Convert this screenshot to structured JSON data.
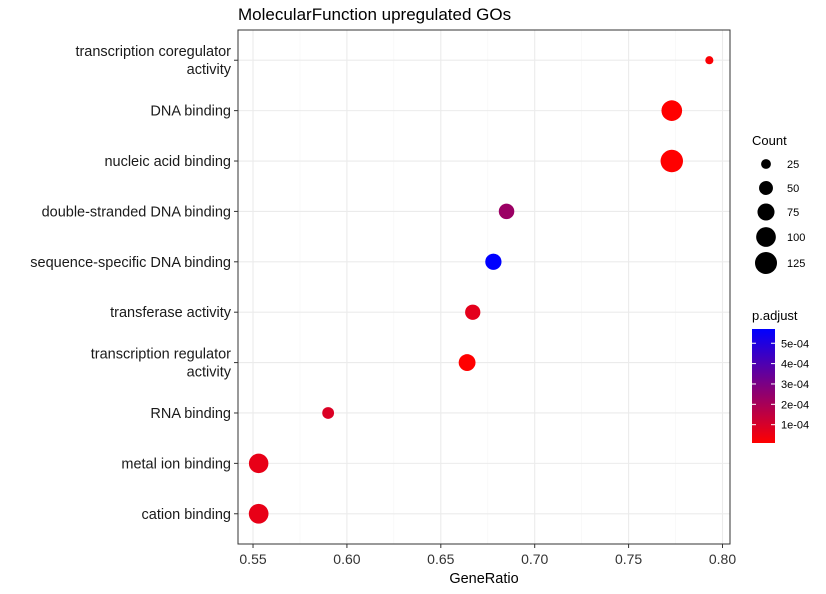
{
  "chart_data": {
    "type": "scatter",
    "title": "MolecularFunction upregulated GOs",
    "xlabel": "GeneRatio",
    "ylabel": "",
    "xlim": [
      0.542,
      0.804
    ],
    "xticks": [
      "0.55",
      "0.60",
      "0.65",
      "0.70",
      "0.75",
      "0.80"
    ],
    "grid": true,
    "categories": [
      "cation binding",
      "metal ion binding",
      "RNA binding",
      "transcription regulator activity",
      "transferase activity",
      "sequence-specific DNA binding",
      "double-stranded DNA binding",
      "nucleic acid binding",
      "DNA binding",
      "transcription coregulator activity"
    ],
    "category_lines": [
      [
        "cation binding"
      ],
      [
        "metal ion binding"
      ],
      [
        "RNA binding"
      ],
      [
        "transcription regulator",
        "activity"
      ],
      [
        "transferase activity"
      ],
      [
        "sequence-specific DNA binding"
      ],
      [
        "double-stranded DNA binding"
      ],
      [
        "nucleic acid binding"
      ],
      [
        "DNA binding"
      ],
      [
        "transcription coregulator",
        "activity"
      ]
    ],
    "points": [
      {
        "category": "cation binding",
        "gene_ratio": 0.553,
        "count": 100,
        "p_adjust": 6e-05
      },
      {
        "category": "metal ion binding",
        "gene_ratio": 0.553,
        "count": 98,
        "p_adjust": 6e-05
      },
      {
        "category": "RNA binding",
        "gene_ratio": 0.59,
        "count": 36,
        "p_adjust": 9e-05
      },
      {
        "category": "transcription regulator activity",
        "gene_ratio": 0.664,
        "count": 73,
        "p_adjust": 1e-05
      },
      {
        "category": "transferase activity",
        "gene_ratio": 0.667,
        "count": 60,
        "p_adjust": 7e-05
      },
      {
        "category": "sequence-specific DNA binding",
        "gene_ratio": 0.678,
        "count": 68,
        "p_adjust": 0.00057
      },
      {
        "category": "double-stranded DNA binding",
        "gene_ratio": 0.685,
        "count": 62,
        "p_adjust": 0.00023
      },
      {
        "category": "nucleic acid binding",
        "gene_ratio": 0.773,
        "count": 130,
        "p_adjust": 1e-05
      },
      {
        "category": "DNA binding",
        "gene_ratio": 0.773,
        "count": 110,
        "p_adjust": 1e-05
      },
      {
        "category": "transcription coregulator activity",
        "gene_ratio": 0.793,
        "count": 17,
        "p_adjust": 2e-05
      }
    ],
    "legend_size": {
      "title": "Count",
      "values": [
        25,
        50,
        75,
        100,
        125
      ],
      "labels": [
        "25",
        "50",
        "75",
        "100",
        "125"
      ],
      "color": "#000000"
    },
    "legend_color": {
      "title": "p.adjust",
      "min": 1e-05,
      "max": 0.00057,
      "ticks": [
        0.0001,
        0.0002,
        0.0003,
        0.0004,
        0.0005
      ],
      "labels": [
        "1e-04",
        "2e-04",
        "3e-04",
        "4e-04",
        "5e-04"
      ],
      "low_color": "#ff0000",
      "high_color": "#0000ff"
    },
    "legend_position": "right",
    "colors": {
      "panel_border": "#333333",
      "grid_major": "#ebebeb",
      "grid_minor": "#f5f5f5"
    }
  }
}
